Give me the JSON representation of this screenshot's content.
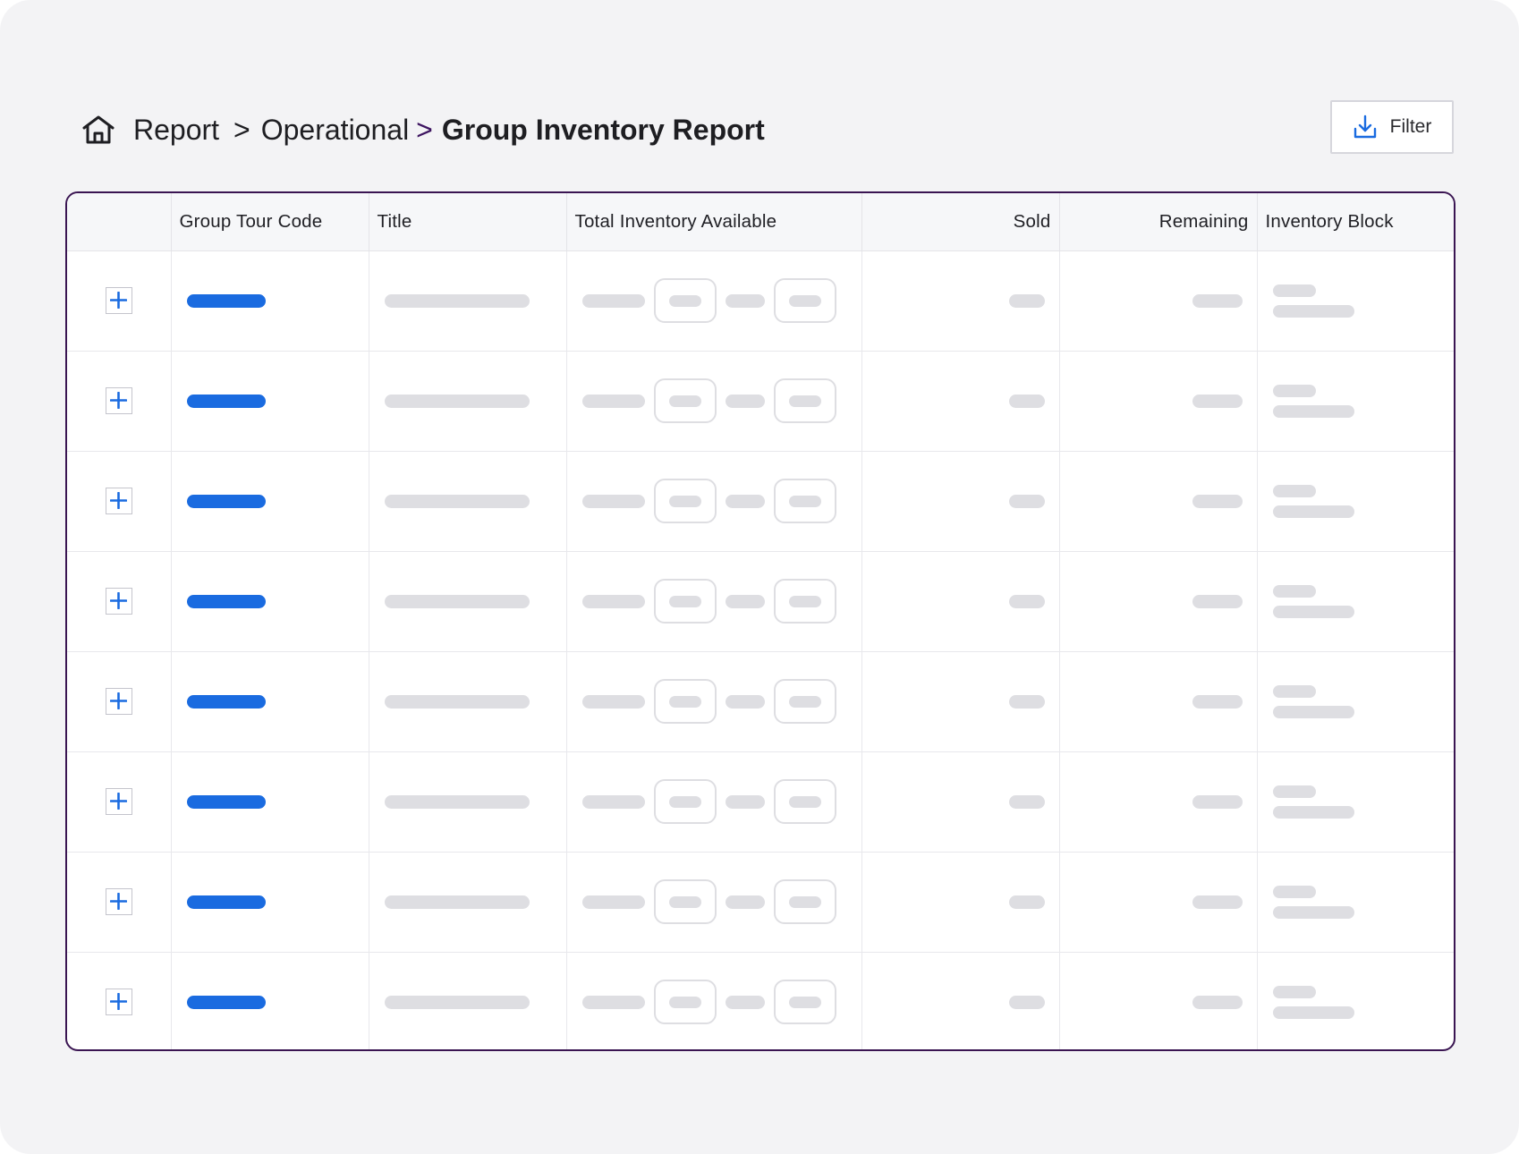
{
  "breadcrumb": {
    "home_icon": "home-icon",
    "items": [
      "Report",
      "Operational",
      "Group Inventory Report"
    ],
    "separator": ">"
  },
  "filter_button": {
    "label": "Filter",
    "icon": "download-icon"
  },
  "table": {
    "headers": [
      "",
      "Group Tour Code",
      "Title",
      "Total Inventory Available",
      "Sold",
      "Remaining",
      "Inventory Block"
    ],
    "row_count": 8,
    "expand_icon": "plus-icon"
  },
  "colors": {
    "accent_blue": "#1a6be0",
    "table_border": "#3a1552",
    "skeleton": "#dedee2",
    "background": "#f3f3f5"
  }
}
